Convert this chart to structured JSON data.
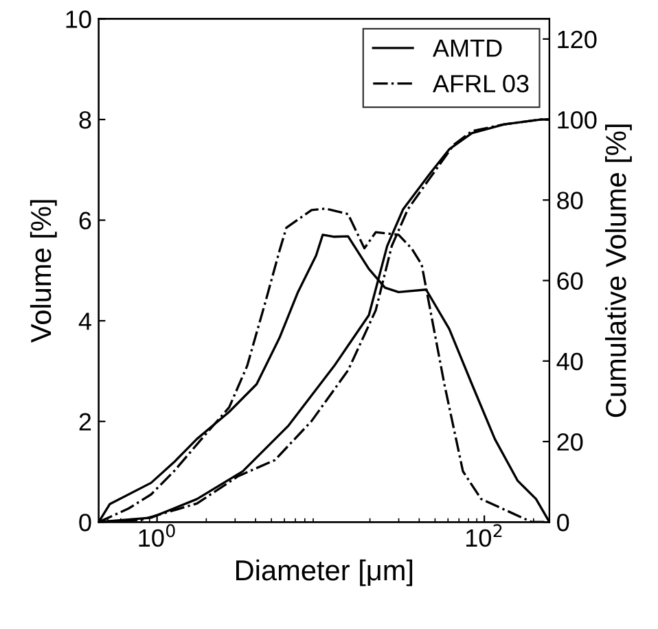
{
  "chart_data": {
    "type": "line",
    "xlabel": "Diameter [μm]",
    "ylabel": "Volume [%]",
    "y2label": "Cumulative Volume [%]",
    "log": "x",
    "grid": false,
    "legend": "top right",
    "marker": "none",
    "xlim": [
      0.44,
      250
    ],
    "xticks": [
      {
        "value": 1,
        "label": "10$^{0}$"
      },
      {
        "value": 100,
        "label": "10$^{2}$"
      }
    ],
    "ylim": [
      0,
      10
    ],
    "yticks": [
      0,
      2,
      4,
      6,
      8,
      10
    ],
    "y2lim": [
      0,
      125
    ],
    "y2ticks": [
      0,
      20,
      40,
      60,
      80,
      100,
      120
    ],
    "series": [
      {
        "name": "AMTD",
        "color": "#000000",
        "line_style": "solid",
        "x": [
          0.44,
          0.515,
          0.92,
          1.27,
          1.75,
          2.76,
          4.06,
          5.6,
          7.26,
          9.38,
          10.3,
          12.1,
          14.7,
          19.7,
          24.7,
          29.9,
          44.1,
          61.0,
          84,
          116,
          160,
          207,
          250
        ],
        "values": [
          0,
          0.36,
          0.78,
          1.19,
          1.65,
          2.19,
          2.74,
          3.66,
          4.57,
          5.3,
          5.71,
          5.67,
          5.68,
          5.03,
          4.66,
          4.57,
          4.62,
          3.84,
          2.74,
          1.65,
          0.82,
          0.46,
          0
        ]
      },
      {
        "name": "AFRL 03",
        "color": "#000000",
        "line_style": "dashdot",
        "x": [
          0.44,
          0.67,
          0.92,
          1.27,
          1.87,
          2.76,
          3.56,
          4.61,
          5.6,
          6.17,
          8.8,
          10.7,
          14.7,
          18.5,
          21.7,
          29.9,
          35.9,
          41.4,
          57.0,
          74,
          95.5,
          195,
          250
        ],
        "values": [
          0,
          0.27,
          0.55,
          1.01,
          1.65,
          2.28,
          3.11,
          4.39,
          5.39,
          5.85,
          6.2,
          6.23,
          6.12,
          5.44,
          5.76,
          5.71,
          5.44,
          5.12,
          2.74,
          1.01,
          0.46,
          0,
          0
        ]
      },
      {
        "color": "#000000",
        "line_style": "solid",
        "axis": "y2",
        "x": [
          0.44,
          0.92,
          1.75,
          3.34,
          6.37,
          12.1,
          19.7,
          25.5,
          31.9,
          47.0,
          61.0,
          84,
          132,
          221,
          250
        ],
        "values": [
          0,
          1.1,
          5.7,
          12.6,
          24,
          38.8,
          51.4,
          68.6,
          77.7,
          86.8,
          92.6,
          96.6,
          98.8,
          100,
          100
        ]
      },
      {
        "color": "#000000",
        "line_style": "dashdot",
        "axis": "y2",
        "x": [
          0.44,
          0.81,
          1.75,
          3.13,
          5.25,
          8.8,
          14.7,
          21.7,
          27.2,
          34.1,
          47.0,
          65.0,
          84,
          132,
          221,
          250
        ],
        "values": [
          0,
          0.6,
          4.6,
          11.4,
          15.4,
          25.1,
          37.7,
          52.6,
          68.6,
          77.7,
          85.7,
          93.7,
          97.1,
          98.8,
          100,
          100
        ]
      }
    ]
  }
}
